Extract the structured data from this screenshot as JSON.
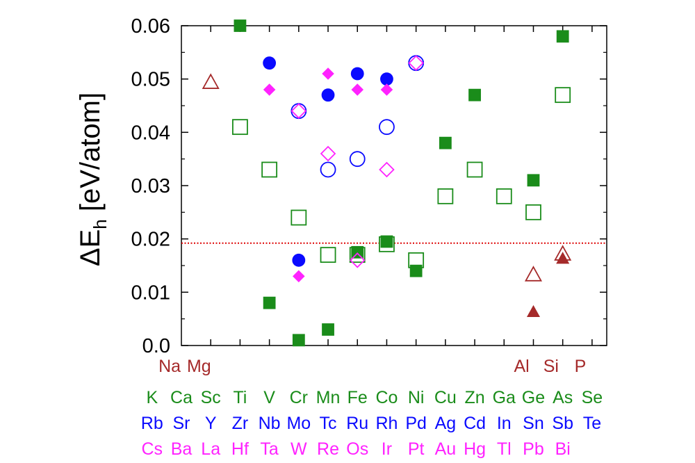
{
  "chart_data": {
    "type": "scatter",
    "ylabel": "ΔE_h [eV/atom]",
    "ylabel_main": "ΔE",
    "ylabel_sub": "h",
    "ylabel_unit": " [eV/atom]",
    "ylim": [
      0,
      0.06
    ],
    "xlim": [
      0,
      14.5
    ],
    "y_ticks": [
      "0.0",
      "0.01",
      "0.02",
      "0.03",
      "0.04",
      "0.05",
      "0.06"
    ],
    "y_tick_values": [
      0,
      0.01,
      0.02,
      0.03,
      0.04,
      0.05,
      0.06
    ],
    "reference_line": {
      "y": 0.0192,
      "color": "#dd0000",
      "style": "dotted"
    },
    "colors": {
      "row3": "#a52a2a",
      "row4": "#1a8c1a",
      "row5": "#0a0aff",
      "row6": "#ff22ff"
    },
    "element_rows": [
      {
        "color": "#a52a2a",
        "labels": [
          {
            "x": -0.4,
            "text": "Na"
          },
          {
            "x": 0.6,
            "text": "Mg"
          },
          {
            "x": 11.6,
            "text": "Al"
          },
          {
            "x": 12.6,
            "text": "Si"
          },
          {
            "x": 13.6,
            "text": "P"
          }
        ]
      },
      {
        "color": "#1a8c1a",
        "labels": [
          {
            "x": -1.0,
            "text": "K"
          },
          {
            "x": 0.0,
            "text": "Ca"
          },
          {
            "x": 1.0,
            "text": "Sc"
          },
          {
            "x": 2.0,
            "text": "Ti"
          },
          {
            "x": 3.0,
            "text": "V"
          },
          {
            "x": 4.0,
            "text": "Cr"
          },
          {
            "x": 5.0,
            "text": "Mn"
          },
          {
            "x": 6.0,
            "text": "Fe"
          },
          {
            "x": 7.0,
            "text": "Co"
          },
          {
            "x": 8.0,
            "text": "Ni"
          },
          {
            "x": 9.0,
            "text": "Cu"
          },
          {
            "x": 10.0,
            "text": "Zn"
          },
          {
            "x": 11.0,
            "text": "Ga"
          },
          {
            "x": 12.0,
            "text": "Ge"
          },
          {
            "x": 13.0,
            "text": "As"
          },
          {
            "x": 14.0,
            "text": "Se"
          }
        ]
      },
      {
        "color": "#0a0aff",
        "labels": [
          {
            "x": -1.0,
            "text": "Rb"
          },
          {
            "x": 0.0,
            "text": "Sr"
          },
          {
            "x": 1.0,
            "text": "Y"
          },
          {
            "x": 2.0,
            "text": "Zr"
          },
          {
            "x": 3.0,
            "text": "Nb"
          },
          {
            "x": 4.0,
            "text": "Mo"
          },
          {
            "x": 5.0,
            "text": "Tc"
          },
          {
            "x": 6.0,
            "text": "Ru"
          },
          {
            "x": 7.0,
            "text": "Rh"
          },
          {
            "x": 8.0,
            "text": "Pd"
          },
          {
            "x": 9.0,
            "text": "Ag"
          },
          {
            "x": 10.0,
            "text": "Cd"
          },
          {
            "x": 11.0,
            "text": "In"
          },
          {
            "x": 12.0,
            "text": "Sn"
          },
          {
            "x": 13.0,
            "text": "Sb"
          },
          {
            "x": 14.0,
            "text": "Te"
          }
        ]
      },
      {
        "color": "#ff22ff",
        "labels": [
          {
            "x": -1.0,
            "text": "Cs"
          },
          {
            "x": 0.0,
            "text": "Ba"
          },
          {
            "x": 1.0,
            "text": "La"
          },
          {
            "x": 2.0,
            "text": "Hf"
          },
          {
            "x": 3.0,
            "text": "Ta"
          },
          {
            "x": 4.0,
            "text": "W"
          },
          {
            "x": 5.0,
            "text": "Re"
          },
          {
            "x": 6.0,
            "text": "Os"
          },
          {
            "x": 7.0,
            "text": "Ir"
          },
          {
            "x": 8.0,
            "text": "Pt"
          },
          {
            "x": 9.0,
            "text": "Au"
          },
          {
            "x": 10.0,
            "text": "Hg"
          },
          {
            "x": 11.0,
            "text": "Tl"
          },
          {
            "x": 12.0,
            "text": "Pb"
          },
          {
            "x": 13.0,
            "text": "Bi"
          }
        ]
      }
    ],
    "series": [
      {
        "marker": "triangle-open",
        "color": "#a52a2a",
        "points": [
          [
            1,
            0.0494
          ],
          [
            12,
            0.0133
          ],
          [
            13,
            0.0172
          ]
        ]
      },
      {
        "marker": "triangle-filled",
        "color": "#a52a2a",
        "points": [
          [
            12,
            0.0063
          ],
          [
            13,
            0.0163
          ]
        ]
      },
      {
        "marker": "square-open",
        "color": "#1a8c1a",
        "points": [
          [
            2,
            0.041
          ],
          [
            3,
            0.033
          ],
          [
            4,
            0.024
          ],
          [
            5,
            0.017
          ],
          [
            6,
            0.017
          ],
          [
            7,
            0.019
          ],
          [
            8,
            0.016
          ],
          [
            9,
            0.028
          ],
          [
            10,
            0.033
          ],
          [
            11,
            0.028
          ],
          [
            12,
            0.025
          ],
          [
            13,
            0.047
          ]
        ]
      },
      {
        "marker": "square-filled",
        "color": "#1a8c1a",
        "points": [
          [
            2,
            0.06
          ],
          [
            3,
            0.008
          ],
          [
            4,
            0.001
          ],
          [
            5,
            0.003
          ],
          [
            6,
            0.0175
          ],
          [
            7,
            0.0195
          ],
          [
            8,
            0.014
          ],
          [
            9,
            0.038
          ],
          [
            10,
            0.047
          ],
          [
            12,
            0.031
          ],
          [
            13,
            0.058
          ]
        ]
      },
      {
        "marker": "circle-filled",
        "color": "#0a0aff",
        "points": [
          [
            3,
            0.053
          ],
          [
            4,
            0.016
          ],
          [
            5,
            0.047
          ],
          [
            6,
            0.051
          ],
          [
            7,
            0.05
          ]
        ]
      },
      {
        "marker": "circle-open",
        "color": "#0a0aff",
        "points": [
          [
            4,
            0.044
          ],
          [
            5,
            0.033
          ],
          [
            6,
            0.035
          ],
          [
            7,
            0.041
          ],
          [
            8,
            0.053
          ]
        ]
      },
      {
        "marker": "diamond-filled",
        "color": "#ff22ff",
        "points": [
          [
            3,
            0.048
          ],
          [
            4,
            0.013
          ],
          [
            5,
            0.051
          ],
          [
            6,
            0.048
          ],
          [
            7,
            0.048
          ]
        ]
      },
      {
        "marker": "diamond-open",
        "color": "#ff22ff",
        "points": [
          [
            4,
            0.044
          ],
          [
            5,
            0.036
          ],
          [
            6,
            0.016
          ],
          [
            7,
            0.033
          ],
          [
            8,
            0.053
          ]
        ]
      }
    ]
  }
}
